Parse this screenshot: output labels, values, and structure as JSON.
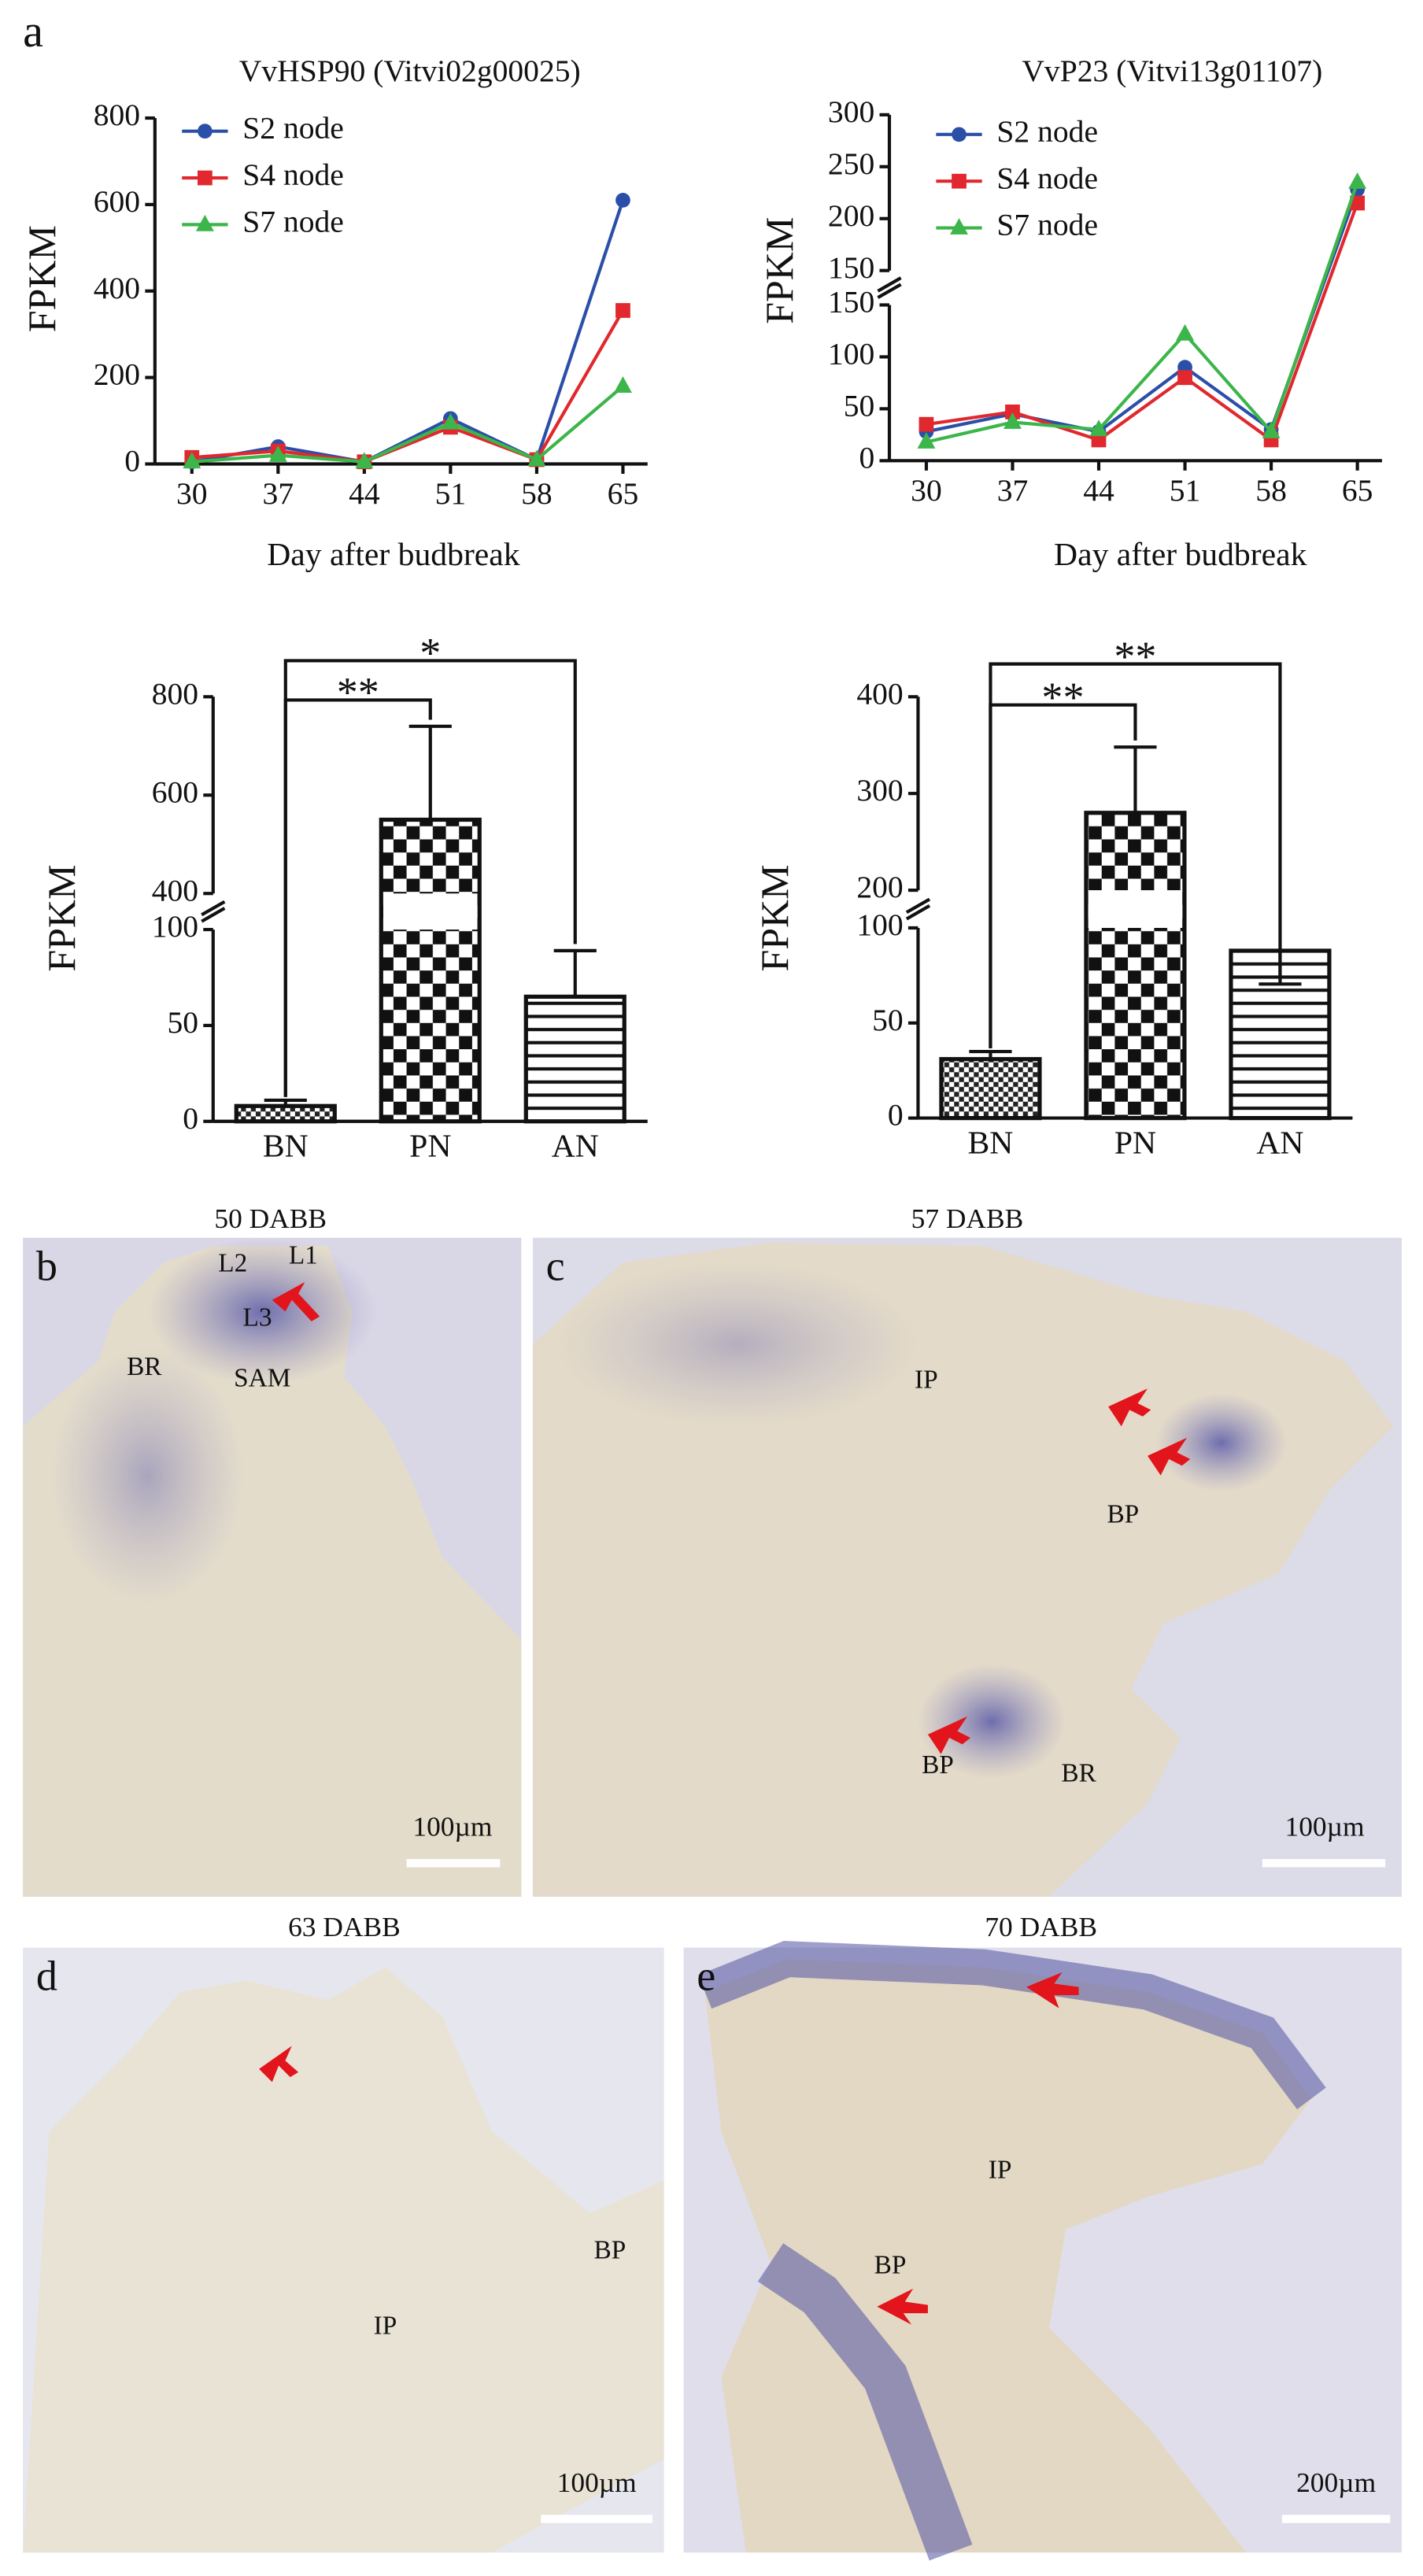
{
  "panel_label": "a",
  "chart_data": [
    {
      "type": "line",
      "title": "VvHSP90 (Vitvi02g00025)",
      "x_label": "Day after budbreak",
      "y_label": "FPKM",
      "x": [
        30,
        37,
        44,
        51,
        58,
        65
      ],
      "xlim": [
        27,
        67
      ],
      "xticks": [
        30,
        37,
        44,
        51,
        58,
        65
      ],
      "ylim": [
        0,
        800
      ],
      "yticks": [
        0,
        200,
        400,
        600,
        800
      ],
      "legend": "upper left",
      "series": [
        {
          "name": "S2 node",
          "color": "#2b4fa8",
          "marker": "circle",
          "values": [
            5,
            40,
            5,
            105,
            10,
            610
          ]
        },
        {
          "name": "S4 node",
          "color": "#e0282e",
          "marker": "square",
          "values": [
            15,
            30,
            5,
            85,
            10,
            355
          ]
        },
        {
          "name": "S7 node",
          "color": "#3cb54a",
          "marker": "triangle",
          "values": [
            5,
            20,
            5,
            95,
            10,
            180
          ]
        }
      ]
    },
    {
      "type": "line",
      "title": "VvP23 (Vitvi13g01107)",
      "x_label": "Day after budbreak",
      "y_label": "FPKM",
      "x": [
        30,
        37,
        44,
        51,
        58,
        65
      ],
      "xlim": [
        27,
        67
      ],
      "xticks": [
        30,
        37,
        44,
        51,
        58,
        65
      ],
      "segments": [
        {
          "ylim": [
            0,
            150
          ],
          "yticks": [
            0,
            50,
            100,
            150
          ]
        },
        {
          "ylim": [
            150,
            300
          ],
          "yticks": [
            150,
            200,
            250,
            300
          ]
        }
      ],
      "legend": "upper left",
      "series": [
        {
          "name": "S2 node",
          "color": "#2b4fa8",
          "marker": "circle",
          "values": [
            28,
            45,
            28,
            90,
            30,
            228
          ]
        },
        {
          "name": "S4 node",
          "color": "#e0282e",
          "marker": "square",
          "values": [
            35,
            47,
            20,
            80,
            20,
            215
          ]
        },
        {
          "name": "S7 node",
          "color": "#3cb54a",
          "marker": "triangle",
          "values": [
            18,
            37,
            30,
            122,
            28,
            235
          ]
        }
      ]
    },
    {
      "type": "bar",
      "y_label": "FPKM",
      "categories": [
        "BN",
        "PN",
        "AN"
      ],
      "values": [
        8,
        550,
        65
      ],
      "errors": [
        3,
        190,
        24
      ],
      "patterns": [
        "fine-check",
        "check",
        "hlines"
      ],
      "segments": [
        {
          "ylim": [
            0,
            100
          ],
          "yticks": [
            0,
            50,
            100
          ]
        },
        {
          "ylim": [
            400,
            800
          ],
          "yticks": [
            400,
            600,
            800
          ]
        }
      ],
      "brackets": [
        {
          "between": [
            "BN",
            "PN"
          ],
          "label": "**"
        },
        {
          "between": [
            "BN",
            "AN"
          ],
          "label": "*"
        }
      ]
    },
    {
      "type": "bar",
      "y_label": "FPKM",
      "categories": [
        "BN",
        "PN",
        "AN"
      ],
      "values": [
        31,
        280,
        88
      ],
      "errors": [
        4,
        68,
        15
      ],
      "patterns": [
        "fine-check",
        "check",
        "hlines"
      ],
      "segments": [
        {
          "ylim": [
            0,
            100
          ],
          "yticks": [
            0,
            50,
            100
          ]
        },
        {
          "ylim": [
            200,
            400
          ],
          "yticks": [
            200,
            300,
            400
          ]
        }
      ],
      "brackets": [
        {
          "between": [
            "BN",
            "PN"
          ],
          "label": "**"
        },
        {
          "between": [
            "BN",
            "AN"
          ],
          "label": "**"
        }
      ]
    }
  ],
  "micrographs": [
    {
      "panel": "b",
      "title": "50 DABB",
      "scale_bar": "100µm",
      "labels": [
        "L2",
        "L1",
        "L3",
        "BR",
        "SAM"
      ]
    },
    {
      "panel": "c",
      "title": "57 DABB",
      "scale_bar": "100µm",
      "labels": [
        "IP",
        "BP",
        "BP",
        "BR"
      ]
    },
    {
      "panel": "d",
      "title": "63 DABB",
      "scale_bar": "100µm",
      "labels": [
        "BP",
        "IP"
      ]
    },
    {
      "panel": "e",
      "title": "70 DABB",
      "scale_bar": "200µm",
      "labels": [
        "IP",
        "BP"
      ]
    }
  ]
}
